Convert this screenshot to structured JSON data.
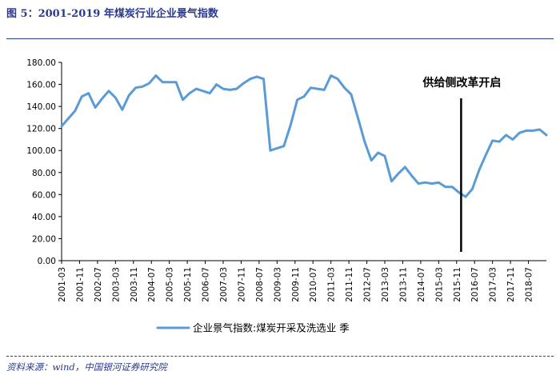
{
  "figure": {
    "title": "图 5：2001-2019 年煤炭行业企业景气指数",
    "source": "资料来源：wind，中国银河证券研究院"
  },
  "chart_data": {
    "type": "line",
    "title": "",
    "xlabel": "",
    "ylabel": "",
    "ylim": [
      0,
      180
    ],
    "yticks": [
      "0.00",
      "20.00",
      "40.00",
      "60.00",
      "80.00",
      "100.00",
      "120.00",
      "140.00",
      "160.00",
      "180.00"
    ],
    "xtick_labels": [
      "2001-03",
      "2001-11",
      "2002-07",
      "2003-03",
      "2003-11",
      "2004-07",
      "2005-03",
      "2005-11",
      "2006-07",
      "2007-03",
      "2007-11",
      "2008-07",
      "2009-03",
      "2009-11",
      "2010-07",
      "2011-03",
      "2011-11",
      "2012-07",
      "2013-03",
      "2013-11",
      "2014-07",
      "2015-03",
      "2015-11",
      "2016-07",
      "2017-03",
      "2017-11",
      "2018-07"
    ],
    "legend_position": "bottom",
    "series": [
      {
        "name": "企业景气指数:煤炭开采及洗选业 季",
        "color": "#5b9bd5",
        "x": [
          "2001-03",
          "2001-06",
          "2001-09",
          "2001-12",
          "2002-03",
          "2002-06",
          "2002-09",
          "2002-12",
          "2003-03",
          "2003-06",
          "2003-09",
          "2003-12",
          "2004-03",
          "2004-06",
          "2004-09",
          "2004-12",
          "2005-03",
          "2005-06",
          "2005-09",
          "2005-12",
          "2006-03",
          "2006-06",
          "2006-09",
          "2006-12",
          "2007-03",
          "2007-06",
          "2007-09",
          "2007-12",
          "2008-03",
          "2008-06",
          "2008-09",
          "2008-12",
          "2009-03",
          "2009-06",
          "2009-09",
          "2009-12",
          "2010-03",
          "2010-06",
          "2010-09",
          "2010-12",
          "2011-03",
          "2011-06",
          "2011-09",
          "2011-12",
          "2012-03",
          "2012-06",
          "2012-09",
          "2012-12",
          "2013-03",
          "2013-06",
          "2013-09",
          "2013-12",
          "2014-03",
          "2014-06",
          "2014-09",
          "2014-12",
          "2015-03",
          "2015-06",
          "2015-09",
          "2015-12",
          "2016-03",
          "2016-06",
          "2016-09",
          "2016-12",
          "2017-03",
          "2017-06",
          "2017-09",
          "2017-12",
          "2018-03",
          "2018-06",
          "2018-09",
          "2018-12",
          "2019-03"
        ],
        "values": [
          122,
          129,
          136,
          149,
          152,
          139,
          147,
          154,
          148,
          137,
          150,
          157,
          158,
          161,
          168,
          162,
          162,
          162,
          146,
          152,
          156,
          154,
          152,
          160,
          156,
          155,
          156,
          161,
          165,
          167,
          165,
          100,
          102,
          104,
          123,
          146,
          149,
          157,
          156,
          155,
          168,
          165,
          157,
          151,
          130,
          108,
          91,
          98,
          95,
          72,
          79,
          85,
          77,
          70,
          71,
          70,
          71,
          67,
          67,
          62,
          58,
          65,
          82,
          96,
          109,
          108,
          114,
          110,
          116,
          118,
          118,
          119,
          114
        ]
      }
    ],
    "annotations": [
      {
        "text": "供给侧改革开启",
        "x": "2016-01"
      }
    ]
  }
}
